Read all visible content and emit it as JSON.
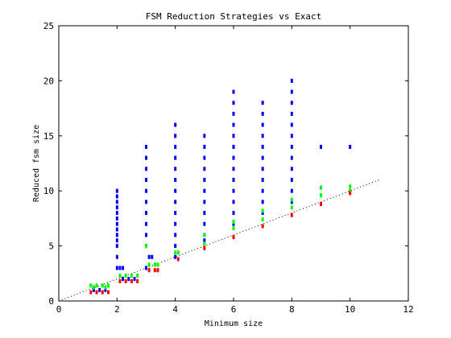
{
  "chart_data": {
    "type": "scatter",
    "title": "FSM Reduction Strategies vs Exact",
    "xlabel": "Minimum size",
    "ylabel": "Reduced fsm size",
    "xlim": [
      0,
      12
    ],
    "ylim": [
      0,
      25
    ],
    "xticks": [
      0,
      2,
      4,
      6,
      8,
      10,
      12
    ],
    "yticks": [
      0,
      5,
      10,
      15,
      20,
      25
    ],
    "grid": false,
    "legend": "none",
    "reference_line": {
      "style": "dotted",
      "color": "#000000",
      "x": [
        0,
        11
      ],
      "y": [
        0,
        11
      ]
    },
    "series": [
      {
        "color": "#0000ff",
        "points": [
          [
            1.2,
            1.0
          ],
          [
            1.4,
            1.0
          ],
          [
            1.6,
            1.0
          ],
          [
            2.0,
            10
          ],
          [
            2.0,
            9.5
          ],
          [
            2.0,
            9.0
          ],
          [
            2.0,
            8.5
          ],
          [
            2.0,
            8.0
          ],
          [
            2.0,
            7.5
          ],
          [
            2.0,
            7.0
          ],
          [
            2.0,
            6.5
          ],
          [
            2.0,
            6.0
          ],
          [
            2.0,
            5.5
          ],
          [
            2.0,
            5.0
          ],
          [
            2.0,
            4.0
          ],
          [
            2.0,
            3.0
          ],
          [
            2.1,
            3.0
          ],
          [
            2.2,
            3.0
          ],
          [
            2.2,
            2.0
          ],
          [
            2.4,
            2.0
          ],
          [
            2.6,
            2.0
          ],
          [
            3.0,
            14
          ],
          [
            3.0,
            13
          ],
          [
            3.0,
            12
          ],
          [
            3.0,
            11
          ],
          [
            3.0,
            10
          ],
          [
            3.0,
            9
          ],
          [
            3.0,
            8
          ],
          [
            3.0,
            7
          ],
          [
            3.0,
            6
          ],
          [
            3.0,
            5
          ],
          [
            3.1,
            4
          ],
          [
            3.2,
            4
          ],
          [
            3.0,
            3
          ],
          [
            4.0,
            16
          ],
          [
            4.0,
            15
          ],
          [
            4.0,
            14
          ],
          [
            4.0,
            13
          ],
          [
            4.0,
            12
          ],
          [
            4.0,
            11
          ],
          [
            4.0,
            10
          ],
          [
            4.0,
            9
          ],
          [
            4.0,
            8
          ],
          [
            4.0,
            7
          ],
          [
            4.0,
            6
          ],
          [
            4.0,
            5
          ],
          [
            4.0,
            4
          ],
          [
            5.0,
            15
          ],
          [
            5.0,
            14
          ],
          [
            5.0,
            13
          ],
          [
            5.0,
            12
          ],
          [
            5.0,
            11
          ],
          [
            5.0,
            10
          ],
          [
            5.0,
            9
          ],
          [
            5.0,
            8
          ],
          [
            5.0,
            7
          ],
          [
            5.0,
            6
          ],
          [
            5.0,
            5.5
          ],
          [
            6.0,
            19
          ],
          [
            6.0,
            18
          ],
          [
            6.0,
            17
          ],
          [
            6.0,
            16
          ],
          [
            6.0,
            15
          ],
          [
            6.0,
            14
          ],
          [
            6.0,
            13
          ],
          [
            6.0,
            12
          ],
          [
            6.0,
            11
          ],
          [
            6.0,
            10
          ],
          [
            6.0,
            9
          ],
          [
            6.0,
            8
          ],
          [
            6.0,
            7
          ],
          [
            7.0,
            18
          ],
          [
            7.0,
            17
          ],
          [
            7.0,
            16
          ],
          [
            7.0,
            15
          ],
          [
            7.0,
            14
          ],
          [
            7.0,
            13
          ],
          [
            7.0,
            12
          ],
          [
            7.0,
            11
          ],
          [
            7.0,
            10
          ],
          [
            7.0,
            9
          ],
          [
            7.0,
            8
          ],
          [
            8.0,
            20
          ],
          [
            8.0,
            19
          ],
          [
            8.0,
            18
          ],
          [
            8.0,
            17
          ],
          [
            8.0,
            16
          ],
          [
            8.0,
            15
          ],
          [
            8.0,
            14
          ],
          [
            8.0,
            13
          ],
          [
            8.0,
            12
          ],
          [
            8.0,
            11
          ],
          [
            8.0,
            10
          ],
          [
            8.0,
            9
          ],
          [
            9.0,
            14
          ],
          [
            10.0,
            14
          ]
        ]
      },
      {
        "color": "#00ff00",
        "points": [
          [
            1.1,
            1.4
          ],
          [
            1.3,
            1.4
          ],
          [
            1.5,
            1.4
          ],
          [
            1.7,
            1.4
          ],
          [
            1.2,
            1.25
          ],
          [
            1.6,
            1.25
          ],
          [
            2.1,
            2.3
          ],
          [
            2.3,
            2.3
          ],
          [
            2.5,
            2.3
          ],
          [
            2.7,
            2.3
          ],
          [
            3.0,
            5.0
          ],
          [
            3.1,
            3.3
          ],
          [
            3.3,
            3.3
          ],
          [
            3.4,
            3.3
          ],
          [
            4.0,
            4.4
          ],
          [
            4.1,
            4.4
          ],
          [
            5.0,
            6.0
          ],
          [
            5.0,
            5.2
          ],
          [
            6.0,
            7.2
          ],
          [
            6.0,
            6.6
          ],
          [
            7.0,
            8.2
          ],
          [
            7.0,
            7.4
          ],
          [
            8.0,
            9.2
          ],
          [
            8.0,
            8.5
          ],
          [
            9.0,
            10.3
          ],
          [
            9.0,
            9.6
          ],
          [
            10.0,
            10.4
          ],
          [
            10.0,
            10.0
          ]
        ]
      },
      {
        "color": "#ff0000",
        "points": [
          [
            1.1,
            0.8
          ],
          [
            1.3,
            0.8
          ],
          [
            1.5,
            0.8
          ],
          [
            1.7,
            0.8
          ],
          [
            2.1,
            1.8
          ],
          [
            2.3,
            1.8
          ],
          [
            2.5,
            1.8
          ],
          [
            2.7,
            1.8
          ],
          [
            3.1,
            2.8
          ],
          [
            3.3,
            2.8
          ],
          [
            3.4,
            2.8
          ],
          [
            4.1,
            3.8
          ],
          [
            5.0,
            4.8
          ],
          [
            6.0,
            5.8
          ],
          [
            7.0,
            6.8
          ],
          [
            8.0,
            7.8
          ],
          [
            9.0,
            8.8
          ],
          [
            10.0,
            9.8
          ]
        ]
      }
    ]
  }
}
